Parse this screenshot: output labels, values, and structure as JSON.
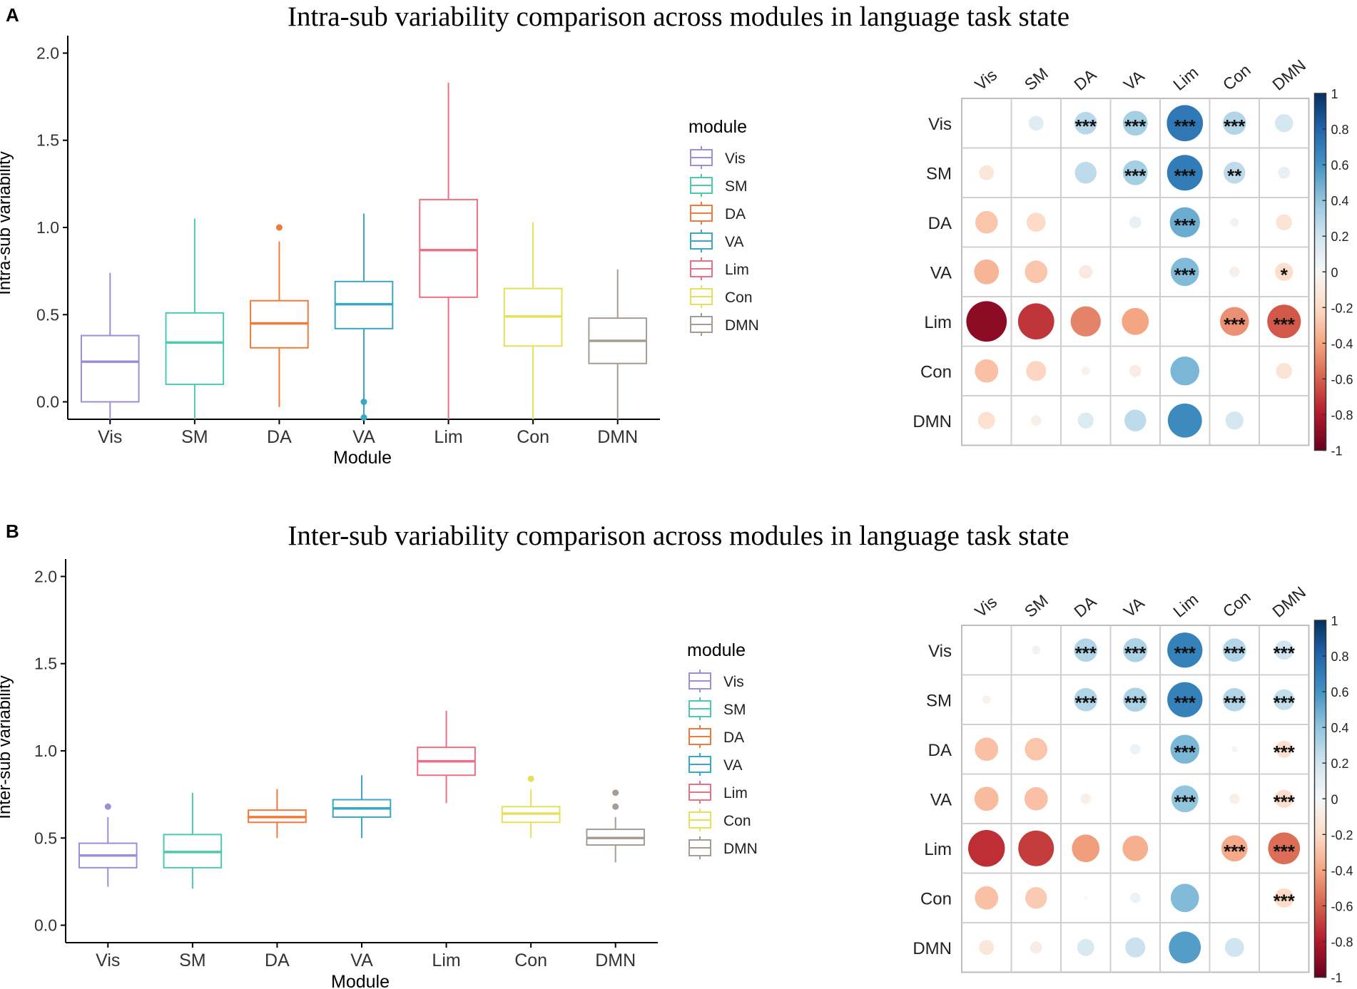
{
  "palette": {
    "module_colors": [
      "#9b8edc",
      "#4dc9b0",
      "#ef7a3c",
      "#3aa7c7",
      "#ec6f86",
      "#e6e05a",
      "#a59d93"
    ],
    "corr_scale": [
      "#67001f",
      "#b2182b",
      "#d6604d",
      "#f4a582",
      "#fddbc7",
      "#f7f7f7",
      "#d1e5f0",
      "#92c5de",
      "#4393c3",
      "#2166ac",
      "#053061"
    ]
  },
  "chart_data": [
    {
      "type": "box",
      "panel": "A",
      "title": "Intra-sub variability comparison across modules in language task state",
      "xlabel": "Module",
      "ylabel": "Intra-sub variability",
      "ylim": [
        -0.1,
        2.1
      ],
      "yticks": [
        "0.0",
        "0.5",
        "1.0",
        "1.5",
        "2.0"
      ],
      "legend_title": "module",
      "categories": [
        "Vis",
        "SM",
        "DA",
        "VA",
        "Lim",
        "Con",
        "DMN"
      ],
      "boxes": [
        {
          "q1": 0.0,
          "median": 0.23,
          "q3": 0.38,
          "whisker_low": -0.1,
          "whisker_high": 0.74,
          "outliers": []
        },
        {
          "q1": 0.1,
          "median": 0.34,
          "q3": 0.51,
          "whisker_low": -0.1,
          "whisker_high": 1.05,
          "outliers": []
        },
        {
          "q1": 0.31,
          "median": 0.45,
          "q3": 0.58,
          "whisker_low": -0.03,
          "whisker_high": 0.92,
          "outliers": [
            1.0
          ]
        },
        {
          "q1": 0.42,
          "median": 0.56,
          "q3": 0.69,
          "whisker_low": -0.1,
          "whisker_high": 1.08,
          "outliers": [
            0.0,
            -0.09
          ]
        },
        {
          "q1": 0.6,
          "median": 0.87,
          "q3": 1.16,
          "whisker_low": -0.1,
          "whisker_high": 1.83,
          "outliers": []
        },
        {
          "q1": 0.32,
          "median": 0.49,
          "q3": 0.65,
          "whisker_low": -0.1,
          "whisker_high": 1.03,
          "outliers": []
        },
        {
          "q1": 0.22,
          "median": 0.35,
          "q3": 0.48,
          "whisker_low": -0.1,
          "whisker_high": 0.76,
          "outliers": []
        }
      ]
    },
    {
      "type": "corrplot",
      "panel": "A",
      "labels": [
        "Vis",
        "SM",
        "DA",
        "VA",
        "Lim",
        "Con",
        "DMN"
      ],
      "color_range": [
        -1,
        1
      ],
      "colorbar_ticks": [
        "1",
        "0.8",
        "0.6",
        "0.4",
        "0.2",
        "0",
        "-0.2",
        "-0.4",
        "-0.6",
        "-0.8",
        "-1"
      ],
      "matrix": [
        [
          null,
          0.12,
          0.28,
          0.34,
          0.72,
          0.3,
          0.18
        ],
        [
          -0.12,
          null,
          0.26,
          0.34,
          0.7,
          0.26,
          0.08
        ],
        [
          -0.28,
          -0.2,
          null,
          0.08,
          0.5,
          0.04,
          -0.14
        ],
        [
          -0.34,
          -0.28,
          -0.1,
          null,
          0.44,
          -0.06,
          -0.18
        ],
        [
          -0.9,
          -0.72,
          -0.5,
          -0.4,
          null,
          -0.46,
          -0.62
        ],
        [
          -0.3,
          -0.22,
          -0.04,
          -0.08,
          0.46,
          null,
          -0.14
        ],
        [
          -0.16,
          -0.06,
          0.14,
          0.26,
          0.64,
          0.18,
          null
        ]
      ],
      "significance": [
        [
          "",
          "",
          "***",
          "***",
          "***",
          "***",
          ""
        ],
        [
          "",
          "",
          "",
          "***",
          "***",
          "**",
          ""
        ],
        [
          "",
          "",
          "",
          "",
          "***",
          "",
          ""
        ],
        [
          "",
          "",
          "",
          "",
          "***",
          "",
          "*"
        ],
        [
          "",
          "",
          "",
          "",
          "",
          "***",
          "***"
        ],
        [
          "",
          "",
          "",
          "",
          "",
          "",
          ""
        ],
        [
          "",
          "",
          "",
          "",
          "",
          "",
          ""
        ]
      ]
    },
    {
      "type": "box",
      "panel": "B",
      "title": "Inter-sub variability comparison across modules in language task state",
      "xlabel": "Module",
      "ylabel": "Inter-sub variability",
      "ylim": [
        -0.1,
        2.1
      ],
      "yticks": [
        "0.0",
        "0.5",
        "1.0",
        "1.5",
        "2.0"
      ],
      "legend_title": "module",
      "categories": [
        "Vis",
        "SM",
        "DA",
        "VA",
        "Lim",
        "Con",
        "DMN"
      ],
      "boxes": [
        {
          "q1": 0.33,
          "median": 0.4,
          "q3": 0.47,
          "whisker_low": 0.22,
          "whisker_high": 0.62,
          "outliers": [
            0.68
          ]
        },
        {
          "q1": 0.33,
          "median": 0.42,
          "q3": 0.52,
          "whisker_low": 0.21,
          "whisker_high": 0.76,
          "outliers": []
        },
        {
          "q1": 0.59,
          "median": 0.62,
          "q3": 0.66,
          "whisker_low": 0.5,
          "whisker_high": 0.78,
          "outliers": []
        },
        {
          "q1": 0.62,
          "median": 0.67,
          "q3": 0.72,
          "whisker_low": 0.5,
          "whisker_high": 0.86,
          "outliers": []
        },
        {
          "q1": 0.86,
          "median": 0.94,
          "q3": 1.02,
          "whisker_low": 0.7,
          "whisker_high": 1.23,
          "outliers": []
        },
        {
          "q1": 0.59,
          "median": 0.64,
          "q3": 0.68,
          "whisker_low": 0.5,
          "whisker_high": 0.78,
          "outliers": [
            0.84
          ]
        },
        {
          "q1": 0.46,
          "median": 0.5,
          "q3": 0.55,
          "whisker_low": 0.36,
          "whisker_high": 0.62,
          "outliers": [
            0.68,
            0.76
          ]
        }
      ]
    },
    {
      "type": "corrplot",
      "panel": "B",
      "labels": [
        "Vis",
        "SM",
        "DA",
        "VA",
        "Lim",
        "Con",
        "DMN"
      ],
      "color_range": [
        -1,
        1
      ],
      "colorbar_ticks": [
        "1",
        "0.8",
        "0.6",
        "0.4",
        "0.2",
        "0",
        "-0.2",
        "-0.4",
        "-0.6",
        "-0.8",
        "-1"
      ],
      "matrix": [
        [
          null,
          0.04,
          0.3,
          0.32,
          0.68,
          0.3,
          0.2
        ],
        [
          -0.04,
          null,
          0.3,
          0.32,
          0.68,
          0.3,
          0.24
        ],
        [
          -0.3,
          -0.28,
          null,
          0.06,
          0.46,
          0.02,
          -0.16
        ],
        [
          -0.32,
          -0.3,
          -0.06,
          null,
          0.4,
          -0.06,
          -0.18
        ],
        [
          -0.74,
          -0.7,
          -0.42,
          -0.36,
          null,
          -0.38,
          -0.56
        ],
        [
          -0.3,
          -0.26,
          0.0,
          0.06,
          0.44,
          null,
          -0.2
        ],
        [
          -0.12,
          -0.08,
          0.16,
          0.22,
          0.56,
          0.2,
          null
        ]
      ],
      "significance": [
        [
          "",
          "",
          "***",
          "***",
          "***",
          "***",
          "***"
        ],
        [
          "",
          "",
          "***",
          "***",
          "***",
          "***",
          "***"
        ],
        [
          "",
          "",
          "",
          "",
          "***",
          "",
          "***"
        ],
        [
          "",
          "",
          "",
          "",
          "***",
          "",
          "***"
        ],
        [
          "",
          "",
          "",
          "",
          "",
          "***",
          "***"
        ],
        [
          "",
          "",
          "",
          "",
          "",
          "",
          "***"
        ],
        [
          "",
          "",
          "",
          "",
          "",
          "",
          ""
        ]
      ]
    }
  ],
  "panel_labels": [
    "A",
    "B"
  ]
}
